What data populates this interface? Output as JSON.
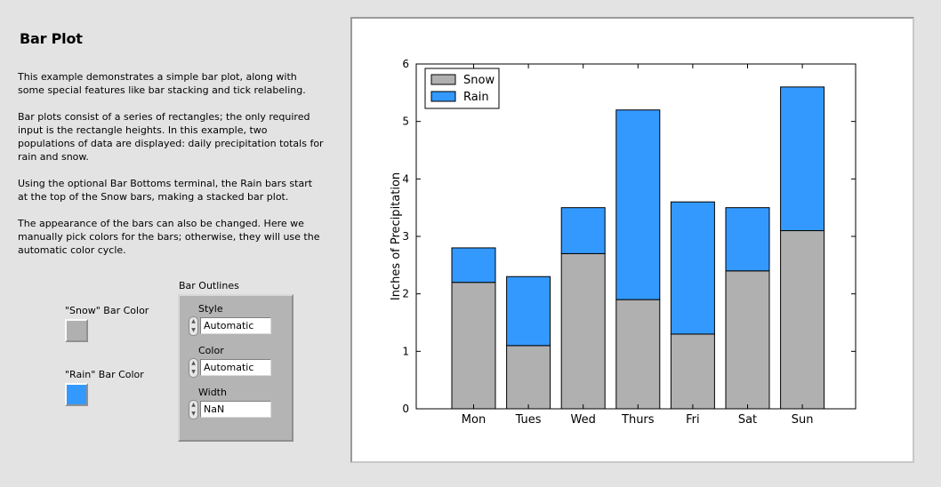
{
  "title": "Bar Plot",
  "description": [
    "This example demonstrates a simple bar plot, along with some special features like bar stacking and tick relabeling.",
    "Bar plots consist of a series of rectangles; the only required input is the rectangle heights.  In this example, two populations of data are displayed: daily precipitation totals for rain and snow.",
    "Using the optional Bar Bottoms terminal, the Rain bars start at the top of the Snow bars, making a stacked bar plot.",
    "The appearance of the bars can also be changed.  Here we manually pick colors for the bars; otherwise, they will use the automatic color cycle."
  ],
  "controls": {
    "snow_color": {
      "label": "\"Snow\" Bar Color",
      "color": "#b0b0b0"
    },
    "rain_color": {
      "label": "\"Rain\" Bar Color",
      "color": "#3399ff"
    },
    "bar_outlines": {
      "label": "Bar Outlines",
      "style": {
        "label": "Style",
        "value": "Automatic"
      },
      "color": {
        "label": "Color",
        "value": "Automatic"
      },
      "width": {
        "label": "Width",
        "value": "NaN"
      }
    }
  },
  "chart_data": {
    "type": "bar",
    "stacked": true,
    "categories": [
      "Mon",
      "Tues",
      "Wed",
      "Thurs",
      "Fri",
      "Sat",
      "Sun"
    ],
    "series": [
      {
        "name": "Snow",
        "values": [
          2.2,
          1.1,
          2.7,
          1.9,
          1.3,
          2.4,
          3.1
        ],
        "color": "#b0b0b0"
      },
      {
        "name": "Rain",
        "values": [
          0.6,
          1.2,
          0.8,
          3.3,
          2.3,
          1.1,
          2.5
        ],
        "color": "#3399ff"
      }
    ],
    "title": "",
    "xlabel": "",
    "ylabel": "Inches of Precipitation",
    "ylim": [
      0,
      6
    ],
    "yticks": [
      0,
      1,
      2,
      3,
      4,
      5,
      6
    ],
    "grid": false,
    "legend_position": "top-left"
  }
}
